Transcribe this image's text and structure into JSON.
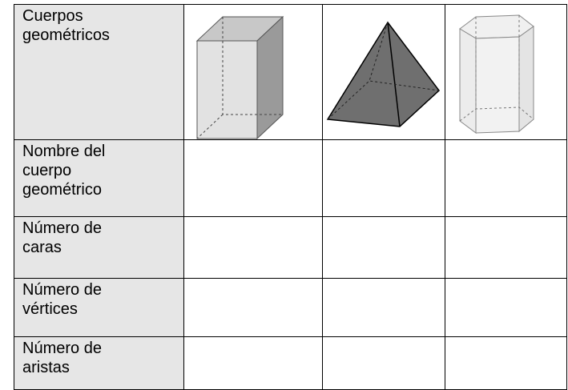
{
  "table": {
    "rows": [
      [
        "Cuerpos geométricos"
      ],
      [
        "Nombre del cuerpo geométrico"
      ],
      [
        "Número de caras"
      ],
      [
        "Número de vértices"
      ],
      [
        "Número de aristas"
      ]
    ]
  }
}
